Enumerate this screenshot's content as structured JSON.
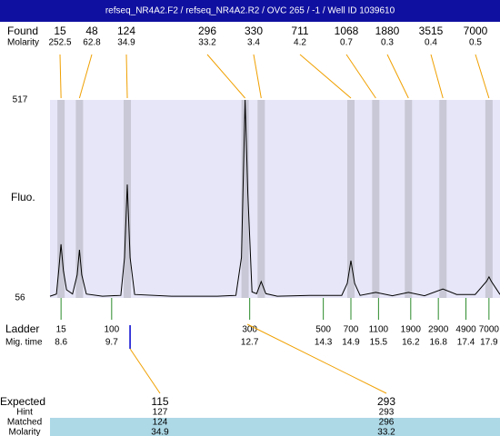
{
  "chart_data": {
    "type": "electropherogram",
    "title": "refseq_NR4A2.F2 / refseq_NR4A2.R2 / OVC 265 / -1 / Well ID 1039610",
    "ylabel": "Fluo.",
    "xlim": [
      8.36,
      18.14
    ],
    "ylim": [
      56,
      517
    ],
    "yticks": [
      56,
      517
    ],
    "found": {
      "label": "Found",
      "sublabel": "Molarity",
      "sizes": [
        15,
        48,
        124,
        296,
        330,
        711,
        1068,
        1880,
        3515,
        7000
      ],
      "molarity": [
        252.5,
        62.8,
        34.9,
        33.2,
        3.4,
        4.2,
        0.7,
        0.3,
        0.4,
        0.5
      ],
      "times": [
        8.6,
        9.0,
        10.04,
        12.6,
        12.95,
        14.9,
        15.44,
        16.15,
        16.9,
        17.9
      ]
    },
    "ladder": {
      "label": "Ladder",
      "sublabel": "Mig. time",
      "sizes": [
        15,
        100,
        300,
        500,
        700,
        1100,
        1900,
        2900,
        4900,
        7000
      ],
      "times": [
        8.6,
        9.7,
        12.7,
        14.3,
        14.9,
        15.5,
        16.2,
        16.8,
        17.4,
        17.9
      ]
    },
    "trace": {
      "x": [
        8.36,
        8.5,
        8.55,
        8.6,
        8.65,
        8.72,
        8.85,
        8.95,
        9.0,
        9.05,
        9.15,
        9.5,
        9.9,
        9.98,
        10.04,
        10.1,
        10.2,
        11.0,
        12.0,
        12.4,
        12.52,
        12.6,
        12.66,
        12.75,
        12.85,
        12.95,
        13.05,
        13.3,
        14.0,
        14.7,
        14.82,
        14.9,
        14.98,
        15.1,
        15.44,
        15.8,
        16.15,
        16.5,
        16.9,
        17.2,
        17.6,
        17.85,
        17.9,
        17.95,
        18.14
      ],
      "values": [
        60,
        65,
        120,
        181,
        120,
        75,
        65,
        110,
        168,
        110,
        65,
        60,
        62,
        150,
        320,
        150,
        64,
        60,
        60,
        62,
        150,
        517,
        300,
        70,
        66,
        94,
        66,
        60,
        62,
        62,
        90,
        143,
        90,
        62,
        69,
        61,
        69,
        61,
        77,
        64,
        64,
        95,
        105,
        95,
        64
      ]
    },
    "expected": {
      "label": "Expected",
      "values": [
        115,
        293
      ],
      "times": [
        10.1,
        12.65
      ],
      "rows": [
        {
          "label": "Hint",
          "values": [
            127,
            293
          ]
        },
        {
          "label": "Matched",
          "values": [
            124,
            296
          ]
        },
        {
          "label": "Molarity",
          "values": [
            34.9,
            33.2
          ]
        }
      ]
    }
  }
}
